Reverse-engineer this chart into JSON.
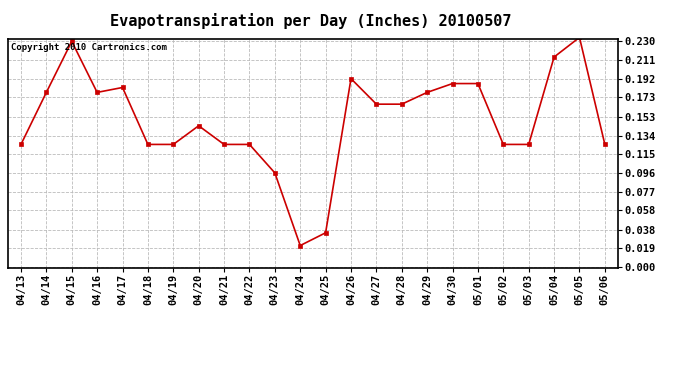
{
  "title": "Evapotranspiration per Day (Inches) 20100507",
  "copyright_text": "Copyright 2010 Cartronics.com",
  "x_labels": [
    "04/13",
    "04/14",
    "04/15",
    "04/16",
    "04/17",
    "04/18",
    "04/19",
    "04/20",
    "04/21",
    "04/22",
    "04/23",
    "04/24",
    "04/25",
    "04/26",
    "04/27",
    "04/28",
    "04/29",
    "04/30",
    "05/01",
    "05/02",
    "05/03",
    "05/04",
    "05/05",
    "05/06"
  ],
  "y_values": [
    0.125,
    0.178,
    0.23,
    0.178,
    0.183,
    0.125,
    0.125,
    0.144,
    0.125,
    0.125,
    0.096,
    0.022,
    0.035,
    0.192,
    0.166,
    0.166,
    0.178,
    0.187,
    0.187,
    0.125,
    0.125,
    0.214,
    0.234,
    0.125
  ],
  "line_color": "#cc0000",
  "marker": "s",
  "marker_size": 2.5,
  "background_color": "#ffffff",
  "grid_color": "#bbbbbb",
  "y_ticks": [
    0.0,
    0.019,
    0.038,
    0.058,
    0.077,
    0.096,
    0.115,
    0.134,
    0.153,
    0.173,
    0.192,
    0.211,
    0.23
  ],
  "ylim": [
    0.0,
    0.23
  ],
  "title_fontsize": 11,
  "copyright_fontsize": 6.5,
  "tick_fontsize": 7.5
}
